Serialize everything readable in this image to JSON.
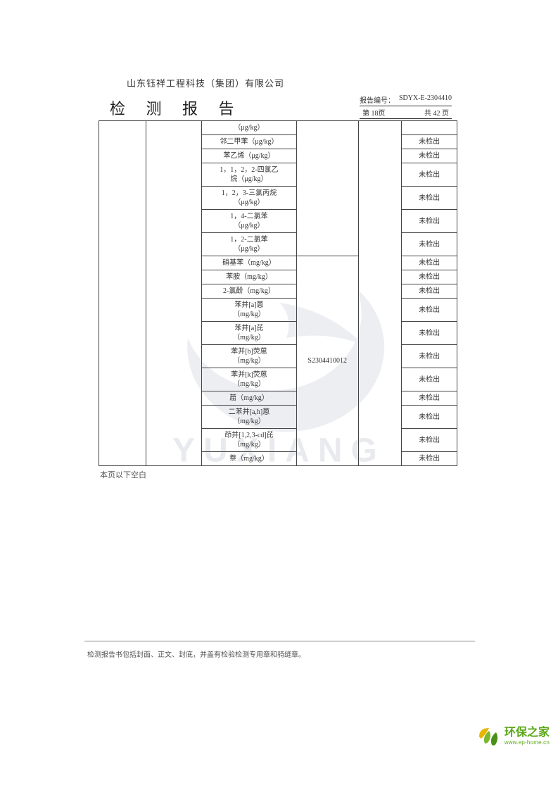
{
  "company_name": "山东钰祥工程科技（集团）有限公司",
  "report_title": "检 测 报 告",
  "report_number_label": "报告编号：",
  "report_number": "SDYX-E-2304410",
  "page_current": "第 18页",
  "page_total": "共 42 页",
  "blank_note": "本页以下空白",
  "footer_note": "检测报告书包括封面、正文、封底，并盖有检验检测专用章和骑缝章。",
  "sample_id": "S2304410012",
  "watermark_text": "YUXIANG",
  "logo_cn": "环保之家",
  "logo_en": "www.ep-home.cn",
  "not_detected": "未检出",
  "rows_top": [
    {
      "param": "（μg/kg）",
      "result": ""
    },
    {
      "param": "邻二甲苯（μg/kg）",
      "result": "未检出"
    },
    {
      "param": "苯乙烯（μg/kg）",
      "result": "未检出"
    },
    {
      "param": "1，1，2，2-四氯乙\n烷（μg/kg）",
      "result": "未检出"
    },
    {
      "param": "1，2，3-三氯丙烷\n（μg/kg）",
      "result": "未检出"
    },
    {
      "param": "1，4-二氯苯\n（μg/kg）",
      "result": "未检出"
    },
    {
      "param": "1，2-二氯苯\n（μg/kg）",
      "result": "未检出"
    }
  ],
  "rows_bottom": [
    {
      "param": "硝基苯（mg/kg）",
      "result": "未检出"
    },
    {
      "param": "苯胺（mg/kg）",
      "result": "未检出"
    },
    {
      "param": "2-氯酚（mg/kg）",
      "result": "未检出"
    },
    {
      "param": "苯并[a]蒽\n（mg/kg）",
      "result": "未检出"
    },
    {
      "param": "苯并[a]芘\n（mg/kg）",
      "result": "未检出"
    },
    {
      "param": "苯并[b]荧蒽\n（mg/kg）",
      "result": "未检出"
    },
    {
      "param": "苯并[k]荧蒽\n（mg/kg）",
      "result": "未检出"
    },
    {
      "param": "䓛（mg/kg）",
      "result": "未检出"
    },
    {
      "param": "二苯并[a,h]蒽\n（mg/kg）",
      "result": "未检出"
    },
    {
      "param": "茚并[1,2,3-cd]芘\n（mg/kg）",
      "result": "未检出"
    },
    {
      "param": "萘（mg/kg）",
      "result": "未检出"
    }
  ],
  "colors": {
    "text": "#333333",
    "border": "#444444",
    "watermark": "#9aa5b5",
    "logo_green": "#5aa617",
    "logo_yellow": "#e8b500"
  }
}
